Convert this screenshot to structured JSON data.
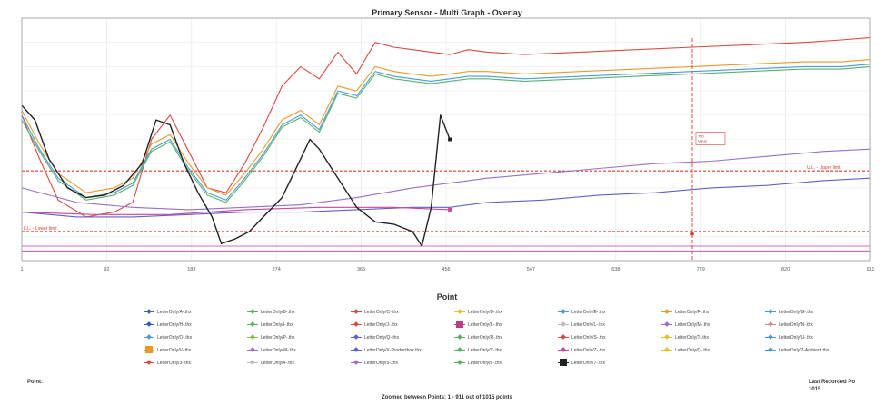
{
  "chart_data": {
    "type": "line",
    "title": "Primary Sensor - Multi Graph - Overlay",
    "xlabel": "Point",
    "ylabel": "",
    "grid": true,
    "xlim": [
      1,
      911
    ],
    "ylim": [
      0,
      100
    ],
    "x_ticks": [
      "1",
      "92",
      "183",
      "274",
      "365",
      "456",
      "547",
      "638",
      "729",
      "820",
      "911"
    ],
    "thresholds": [
      {
        "name": "upper",
        "value": 37,
        "label": "U.L. - Upper limit"
      },
      {
        "name": "lower",
        "value": 12,
        "label": "L.L. - Lower limit"
      }
    ],
    "marker": {
      "x": 720,
      "label": "720\nValue"
    },
    "series": [
      {
        "name": "LetterOnly/A-.thx",
        "color": "#d94a3f",
        "x": [
          1,
          20,
          40,
          70,
          100,
          120,
          140,
          160,
          180,
          200,
          220,
          240,
          260,
          280,
          300,
          320,
          340,
          360,
          380,
          400,
          420,
          440,
          460,
          480,
          500,
          540,
          600,
          660,
          720,
          780,
          840,
          880,
          911
        ],
        "y": [
          60,
          42,
          25,
          18,
          20,
          24,
          50,
          60,
          45,
          30,
          28,
          40,
          55,
          72,
          80,
          75,
          86,
          77,
          90,
          88,
          87,
          86,
          85,
          87,
          86,
          85,
          86,
          87,
          88,
          89,
          90,
          91,
          92
        ]
      },
      {
        "name": "LetterOnly/B-.thx",
        "color": "#e69a2e",
        "x": [
          1,
          20,
          40,
          70,
          100,
          120,
          140,
          160,
          180,
          200,
          220,
          240,
          260,
          280,
          300,
          320,
          340,
          360,
          380,
          400,
          420,
          440,
          460,
          480,
          500,
          540,
          600,
          660,
          720,
          780,
          840,
          880,
          911
        ],
        "y": [
          62,
          48,
          36,
          28,
          30,
          34,
          48,
          52,
          40,
          30,
          27,
          36,
          46,
          58,
          62,
          56,
          72,
          70,
          80,
          78,
          77,
          76,
          77,
          78,
          78,
          77,
          78,
          79,
          80,
          81,
          82,
          82,
          83
        ]
      },
      {
        "name": "LetterOnly/C-.thx",
        "color": "#4a9ad8",
        "x": [
          1,
          20,
          40,
          70,
          100,
          120,
          140,
          160,
          180,
          200,
          220,
          240,
          260,
          280,
          300,
          320,
          340,
          360,
          380,
          400,
          420,
          440,
          460,
          480,
          500,
          540,
          600,
          660,
          720,
          780,
          840,
          880,
          911
        ],
        "y": [
          60,
          46,
          34,
          26,
          28,
          32,
          46,
          50,
          38,
          28,
          25,
          34,
          44,
          56,
          60,
          54,
          70,
          68,
          78,
          76,
          75,
          74,
          75,
          76,
          76,
          75,
          76,
          77,
          78,
          79,
          80,
          80,
          81
        ]
      },
      {
        "name": "LetterOnly/D-.thx",
        "color": "#59b06b",
        "x": [
          1,
          20,
          40,
          70,
          100,
          120,
          140,
          160,
          180,
          200,
          220,
          240,
          260,
          280,
          300,
          320,
          340,
          360,
          380,
          400,
          420,
          440,
          460,
          480,
          500,
          540,
          600,
          660,
          720,
          780,
          840,
          880,
          911
        ],
        "y": [
          58,
          45,
          33,
          25,
          27,
          31,
          45,
          49,
          37,
          27,
          24,
          33,
          43,
          55,
          59,
          53,
          69,
          67,
          77,
          75,
          74,
          73,
          74,
          75,
          75,
          74,
          75,
          76,
          77,
          78,
          79,
          79,
          80
        ]
      },
      {
        "name": "LetterOnly/E-.thx",
        "color": "#9a6fc4",
        "x": [
          1,
          60,
          120,
          180,
          240,
          300,
          360,
          420,
          460,
          500,
          560,
          620,
          680,
          740,
          800,
          860,
          911
        ],
        "y": [
          30,
          24,
          22,
          21,
          22,
          23,
          26,
          30,
          32,
          34,
          36,
          38,
          40,
          41,
          43,
          45,
          46
        ]
      },
      {
        "name": "LetterOnly/F-.thx",
        "color": "#6060c8",
        "x": [
          1,
          60,
          120,
          180,
          240,
          300,
          360,
          420,
          460,
          500,
          560,
          620,
          680,
          740,
          800,
          860,
          911
        ],
        "y": [
          20,
          18,
          18,
          19,
          20,
          20,
          21,
          22,
          22,
          24,
          25,
          27,
          28,
          30,
          31,
          33,
          34
        ]
      },
      {
        "name": "LetterOnly/G-.thx",
        "color": "#d0449a",
        "x": [
          1,
          80,
          160,
          240,
          320,
          400,
          460
        ],
        "y": [
          20,
          19,
          19,
          21,
          22,
          22,
          21
        ]
      },
      {
        "name": "LetterOnly/H-.thx",
        "color": "#222222",
        "x": [
          1,
          15,
          30,
          50,
          70,
          90,
          110,
          130,
          145,
          160,
          175,
          190,
          205,
          215,
          230,
          245,
          260,
          280,
          300,
          310,
          320,
          340,
          360,
          380,
          400,
          420,
          430,
          440,
          450,
          460
        ],
        "y": [
          64,
          58,
          42,
          30,
          26,
          27,
          31,
          40,
          58,
          56,
          40,
          28,
          18,
          7,
          9,
          12,
          18,
          26,
          42,
          50,
          46,
          34,
          22,
          16,
          15,
          12,
          6,
          22,
          60,
          50
        ]
      }
    ]
  },
  "legend": [
    {
      "label": "LetterOnly/A-.thx",
      "color": "#4060a8"
    },
    {
      "label": "LetterOnly/B-.thx",
      "color": "#59b06b"
    },
    {
      "label": "LetterOnly/C-.thx",
      "color": "#d94a3f"
    },
    {
      "label": "LetterOnly/D-.thx",
      "color": "#e6c02e"
    },
    {
      "label": "LetterOnly/E-.thx",
      "color": "#4a9ad8"
    },
    {
      "label": "LetterOnly/F-.thx",
      "color": "#e69a2e"
    },
    {
      "label": "LetterOnly/G-.thx",
      "color": "#4a9ad8"
    },
    {
      "label": "LetterOnly/H-.thx",
      "color": "#2e60b8"
    },
    {
      "label": "LetterOnly/I-.thx",
      "color": "#59b06b"
    },
    {
      "label": "LetterOnly/J-.thx",
      "color": "#d94a3f"
    },
    {
      "label": "LetterOnly/K-.thx",
      "color": "#c03a8a",
      "big": true
    },
    {
      "label": "LetterOnly/L-.thx",
      "color": "#bbbbbb"
    },
    {
      "label": "LetterOnly/M-.thx",
      "color": "#9a6fc4"
    },
    {
      "label": "LetterOnly/N-.thx",
      "color": "#d08a8a"
    },
    {
      "label": "LetterOnly/O-.thx",
      "color": "#4a9ad8"
    },
    {
      "label": "LetterOnly/P-.thx",
      "color": "#8abb4a"
    },
    {
      "label": "LetterOnly/Q-.thx",
      "color": "#6060c8"
    },
    {
      "label": "LetterOnly/R-.thx",
      "color": "#59b06b"
    },
    {
      "label": "LetterOnly/S-.thx",
      "color": "#d94a3f"
    },
    {
      "label": "LetterOnly/T-.thx",
      "color": "#e6c02e"
    },
    {
      "label": "LetterOnly/U-.thx",
      "color": "#4a9ad8"
    },
    {
      "label": "LetterOnly/V-.thx",
      "color": "#e69a2e",
      "big": true
    },
    {
      "label": "LetterOnly/W-.thx",
      "color": "#9a6fc4"
    },
    {
      "label": "LetterOnly/X-Productbox.thx",
      "color": "#6060c8"
    },
    {
      "label": "LetterOnly/Y-.thx",
      "color": "#59b06b"
    },
    {
      "label": "LetterOnly/Z-.thx",
      "color": "#d0449a"
    },
    {
      "label": "LetterOnly/Q-.thx",
      "color": "#e6c02e"
    },
    {
      "label": "LetterOnly/2-Ambient.thx",
      "color": "#4a9ad8"
    },
    {
      "label": "LetterOnly/3-.thx",
      "color": "#d94a3f"
    },
    {
      "label": "LetterOnly/4-.thx",
      "color": "#bbbbbb"
    },
    {
      "label": "LetterOnly/5-.thx",
      "color": "#9a6fc4"
    },
    {
      "label": "LetterOnly/6-.thx",
      "color": "#59b06b"
    },
    {
      "label": "LetterOnly/7-.thx",
      "color": "#222222",
      "big": true
    }
  ],
  "footer": {
    "point_label": "Point:",
    "last_recorded_label": "Last Recorded Po",
    "last_recorded_value": "1015",
    "zoom_info": "Zoomed between Points: 1 - 911 out of 1015 points"
  }
}
